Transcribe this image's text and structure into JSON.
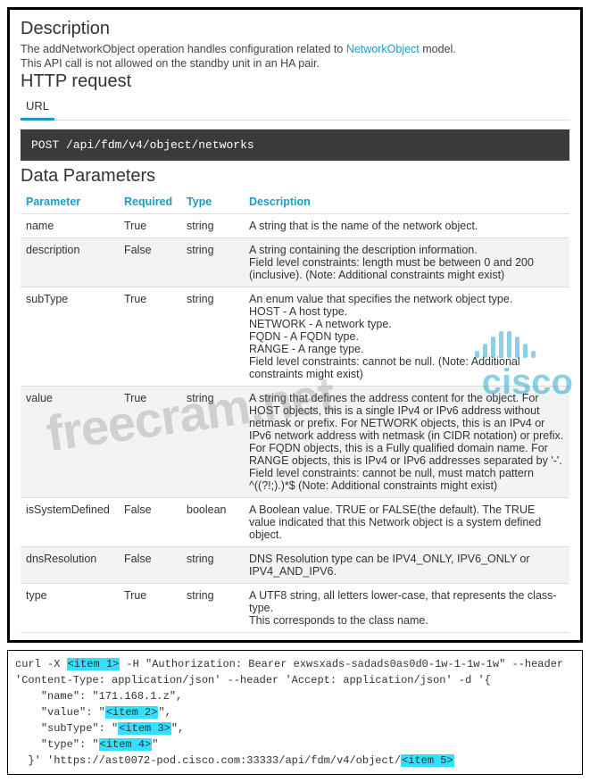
{
  "headings": {
    "description": "Description",
    "http_request": "HTTP request",
    "data_parameters": "Data Parameters"
  },
  "description": {
    "line1_pre": "The addNetworkObject operation handles configuration related to ",
    "link": "NetworkObject",
    "line1_post": " model.",
    "line2": "This API call is not allowed on the standby unit in an HA pair."
  },
  "tab": {
    "url": "URL"
  },
  "endpoint": {
    "method": "POST",
    "path": "/api/fdm/v4/object/networks"
  },
  "table": {
    "headers": {
      "param": "Parameter",
      "required": "Required",
      "type": "Type",
      "desc": "Description"
    },
    "rows": [
      {
        "param": "name",
        "required": "True",
        "type": "string",
        "desc": "A string that is the name of the network object."
      },
      {
        "param": "description",
        "required": "False",
        "type": "string",
        "desc": "A string containing the description information.\nField level constraints: length must be between 0 and 200 (inclusive). (Note: Additional constraints might exist)"
      },
      {
        "param": "subType",
        "required": "True",
        "type": "string",
        "desc": "An enum value that specifies the network object type.\nHOST - A host type.\nNETWORK - A network type.\nFQDN - A FQDN type.\nRANGE - A range type.\nField level constraints: cannot be null. (Note: Additional constraints might exist)"
      },
      {
        "param": "value",
        "required": "True",
        "type": "string",
        "desc": "A string that defines the address content for the object. For HOST objects, this is a single IPv4 or IPv6 address without netmask or prefix. For NETWORK objects, this is an IPv4 or IPv6 network address with netmask (in CIDR notation) or prefix. For FQDN objects, this is a Fully qualified domain name. For RANGE objects, this is IPv4 or IPv6 addresses separated by '-'.\nField level constraints: cannot be null, must match pattern ^((?!;).)*$ (Note: Additional constraints might exist)"
      },
      {
        "param": "isSystemDefined",
        "required": "False",
        "type": "boolean",
        "desc": "A Boolean value. TRUE or FALSE(the default). The TRUE value indicated that this Network object is a system defined object."
      },
      {
        "param": "dnsResolution",
        "required": "False",
        "type": "string",
        "desc": "DNS Resolution type can be IPV4_ONLY, IPV6_ONLY or IPV4_AND_IPV6."
      },
      {
        "param": "type",
        "required": "True",
        "type": "string",
        "desc": "A UTF8 string, all letters lower-case, that represents the class-type.\nThis corresponds to the class name."
      }
    ]
  },
  "curl": {
    "pre1": "curl -X ",
    "i1": "<item 1>",
    "post1": " -H \"Authorization: Bearer exwsxads-sadads0as0d0-1w-1-1w-1w\" --header",
    "line2": "'Content-Type: application/json' --header 'Accept: application/json' -d '{",
    "name_line": "    \"name\": \"171.168.1.z\",",
    "value_pre": "    \"value\": \"",
    "i2": "<item 2>",
    "value_post": "\",",
    "sub_pre": "    \"subType\": \"",
    "i3": "<item 3>",
    "sub_post": "\",",
    "type_pre": "    \"type\": \"",
    "i4": "<item 4>",
    "type_post": "\"",
    "end_pre": "  }' 'https://ast0072-pod.cisco.com:33333/api/fdm/v4/object/",
    "i5": "<item 5>"
  },
  "watermarks": {
    "freecram": "freecram.net",
    "cisco": "cisco"
  },
  "colors": {
    "accent": "#1a9cc7",
    "endpoint_bg": "#3a3a3a",
    "highlight": "#33e0ff",
    "alt_row": "#f3f3f3",
    "border": "#000000"
  }
}
